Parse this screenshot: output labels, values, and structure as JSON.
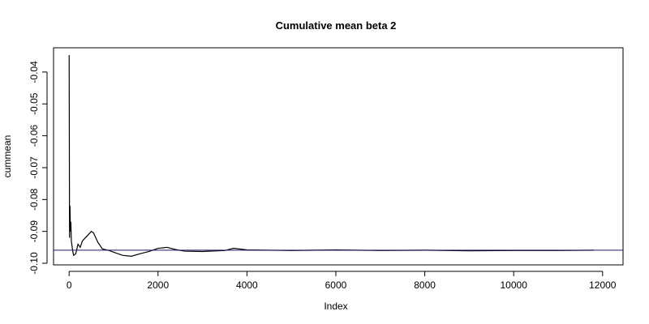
{
  "chart_data": {
    "type": "line",
    "title": "Cumulative mean beta 2",
    "x_label": "Index",
    "y_label": "cummean",
    "x": [
      1,
      10,
      20,
      30,
      40,
      50,
      80,
      100,
      150,
      200,
      250,
      300,
      400,
      500,
      550,
      650,
      750,
      900,
      1000,
      1200,
      1400,
      1600,
      1800,
      2000,
      2200,
      2400,
      2600,
      3000,
      3500,
      3700,
      4000,
      5000,
      6000,
      7000,
      8000,
      9000,
      10000,
      11000,
      11800
    ],
    "series": [
      {
        "name": "cummean",
        "color": "#000000",
        "values": [
          -0.0347,
          -0.092,
          -0.082,
          -0.09,
          -0.087,
          -0.093,
          -0.096,
          -0.0975,
          -0.097,
          -0.094,
          -0.095,
          -0.093,
          -0.0915,
          -0.09,
          -0.0905,
          -0.0935,
          -0.0955,
          -0.096,
          -0.0965,
          -0.0975,
          -0.0978,
          -0.097,
          -0.0963,
          -0.0953,
          -0.095,
          -0.0957,
          -0.0962,
          -0.0963,
          -0.096,
          -0.0953,
          -0.0958,
          -0.096,
          -0.0958,
          -0.096,
          -0.0959,
          -0.0961,
          -0.096,
          -0.096,
          -0.0959
        ]
      }
    ],
    "hline": {
      "value": -0.0959,
      "color": "#1a1a66"
    },
    "xlim": [
      -350,
      12460
    ],
    "ylim": [
      -0.1005,
      -0.0324
    ],
    "xticks": [
      0,
      2000,
      4000,
      6000,
      8000,
      10000,
      12000
    ],
    "yticks": [
      {
        "value": -0.1,
        "label": "-0.10"
      },
      -0.09,
      -0.08,
      -0.07,
      -0.06,
      -0.05,
      -0.04
    ],
    "grid": false
  }
}
